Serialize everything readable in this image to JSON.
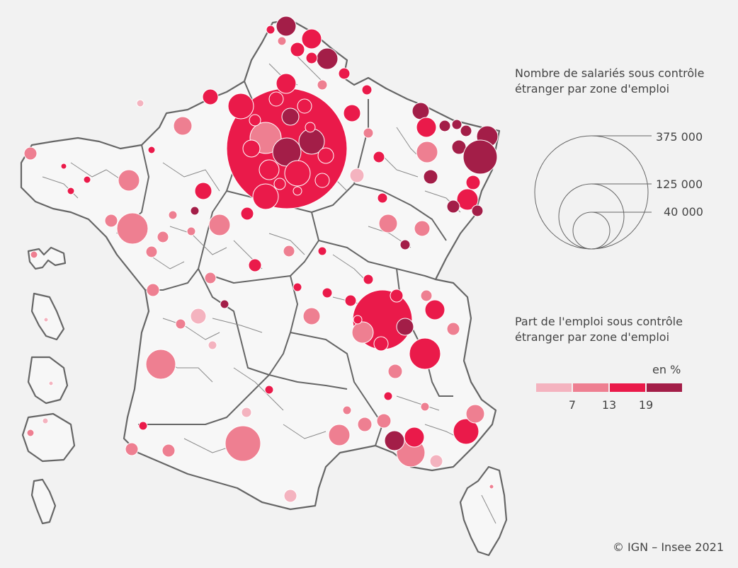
{
  "size_legend": {
    "title_line1": "Nombre de salariés sous contrôle",
    "title_line2": "étranger par zone d'emploi",
    "values": [
      "375 000",
      "125 000",
      "40 000"
    ]
  },
  "color_legend": {
    "title_line1": "Part de l'emploi sous contrôle",
    "title_line2": "étranger par zone d'emploi",
    "unit": "en %",
    "ticks": [
      "7",
      "13",
      "19"
    ],
    "colors": [
      "#f4b3bf",
      "#ee7f91",
      "#ea1a4a",
      "#a31e48"
    ]
  },
  "credit": "© IGN – Insee 2021"
}
